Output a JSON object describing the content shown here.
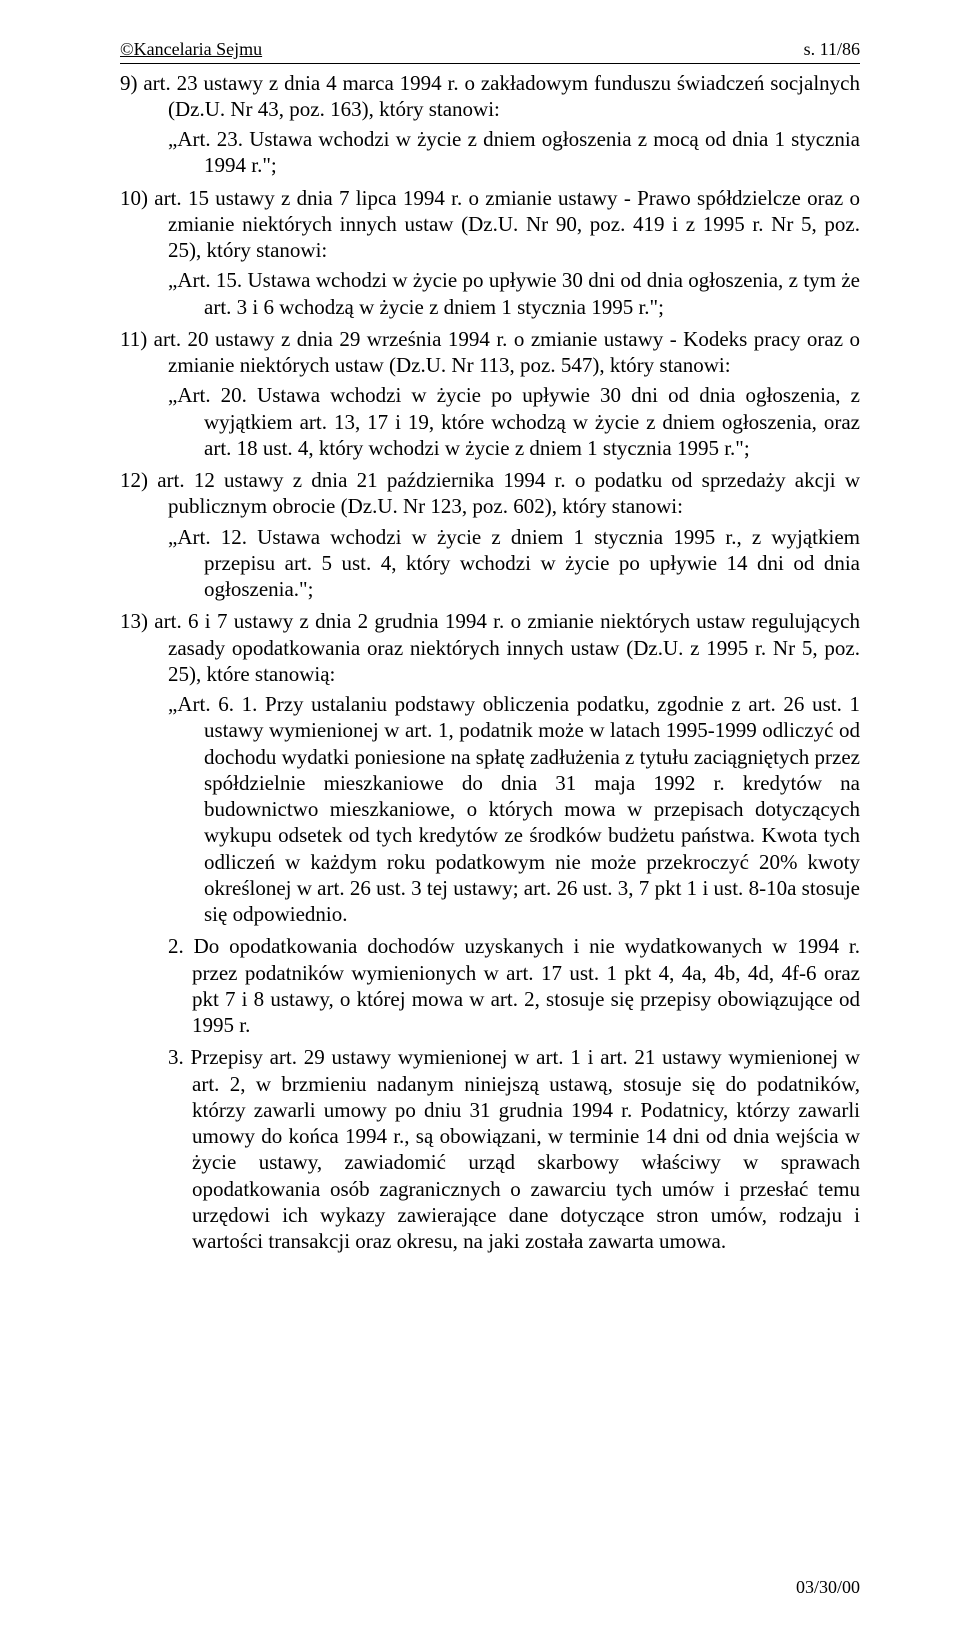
{
  "header": {
    "left": "©Kancelaria Sejmu",
    "right": "s. 11/86"
  },
  "item9": {
    "lead": "9) art. 23 ustawy z dnia 4 marca 1994 r. o zakładowym funduszu świadczeń socjalnych (Dz.U. Nr 43, poz. 163), który stanowi:",
    "quote": "„Art. 23. Ustawa wchodzi w życie z dniem ogłoszenia z mocą od dnia 1 stycznia 1994 r.\";"
  },
  "item10": {
    "lead": "10) art. 15 ustawy z dnia 7 lipca 1994 r. o zmianie ustawy - Prawo spółdzielcze oraz o zmianie niektórych innych ustaw (Dz.U. Nr 90, poz. 419 i z 1995 r. Nr 5, poz. 25), który stanowi:",
    "quote": "„Art. 15. Ustawa wchodzi w życie po upływie 30 dni od dnia ogłoszenia, z tym że art. 3 i 6 wchodzą w życie z dniem 1 stycznia 1995 r.\";"
  },
  "item11": {
    "lead": "11) art. 20 ustawy z dnia 29 września 1994 r. o zmianie ustawy - Kodeks pracy oraz o zmianie niektórych ustaw (Dz.U. Nr 113, poz. 547), który stanowi:",
    "quote": "„Art. 20. Ustawa wchodzi w życie po upływie 30 dni od dnia ogłoszenia, z wyjątkiem art. 13, 17 i 19, które wchodzą w życie z dniem ogłoszenia, oraz art. 18 ust. 4, który wchodzi w życie z dniem 1 stycznia 1995 r.\";"
  },
  "item12": {
    "lead": "12) art. 12 ustawy z dnia 21 października 1994 r. o podatku od sprzedaży akcji w publicznym obrocie (Dz.U. Nr 123, poz. 602), który stanowi:",
    "quote": "„Art. 12. Ustawa wchodzi w życie z dniem 1 stycznia 1995 r., z wyjątkiem przepisu art. 5 ust. 4, który wchodzi w życie po upływie 14 dni od dnia ogłoszenia.\";"
  },
  "item13": {
    "lead": "13) art. 6 i 7 ustawy z dnia 2 grudnia 1994 r. o zmianie niektórych ustaw regulujących zasady opodatkowania oraz niektórych innych ustaw (Dz.U. z 1995 r. Nr 5, poz. 25), które stanowią:",
    "quote": "„Art. 6. 1. Przy ustalaniu podstawy obliczenia podatku, zgodnie z art. 26 ust. 1 ustawy wymienionej w art. 1, podatnik może w latach 1995-1999 odliczyć od dochodu wydatki poniesione na spłatę zadłużenia z tytułu zaciągniętych przez spółdzielnie mieszkaniowe do dnia 31 maja 1992 r. kredytów na budownictwo mieszkaniowe, o których mowa w przepisach dotyczących wykupu odsetek od tych kredytów ze środków budżetu państwa. Kwota tych odliczeń w każdym roku podatkowym nie może przekroczyć 20% kwoty określonej w art. 26 ust. 3 tej ustawy; art. 26 ust. 3, 7 pkt 1 i ust. 8-10a stosuje się odpowiednio.",
    "sub2": "2. Do opodatkowania dochodów uzyskanych i nie wydatkowanych w 1994 r. przez podatników wymienionych w art. 17 ust. 1 pkt 4, 4a, 4b, 4d, 4f-6 oraz pkt 7 i 8 ustawy, o której mowa w art. 2, stosuje się przepisy obowiązujące od 1995 r.",
    "sub3": "3. Przepisy art. 29 ustawy wymienionej w art. 1 i art. 21 ustawy wymienionej w art. 2, w brzmieniu nadanym niniejszą ustawą, stosuje się do podatników, którzy zawarli umowy po dniu 31 grudnia 1994 r. Podatnicy, którzy zawarli umowy do końca 1994 r., są obowiązani, w terminie 14 dni od dnia wejścia w życie ustawy, zawiadomić urząd skarbowy właściwy w sprawach opodatkowania osób zagranicznych o zawarciu tych umów i przesłać temu urzędowi ich wykazy zawierające dane dotyczące stron umów, rodzaju i wartości transakcji oraz okresu, na jaki została zawarta umowa."
  },
  "footer": "03/30/00"
}
